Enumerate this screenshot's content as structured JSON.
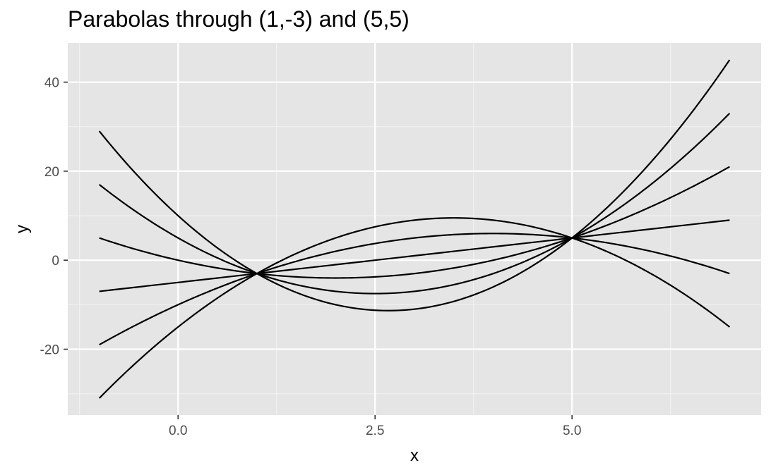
{
  "chart_data": {
    "type": "line",
    "title": "Parabolas through (1,-3) and (5,5)",
    "xlabel": "x",
    "ylabel": "y",
    "xlim": [
      -1,
      7
    ],
    "ylim": [
      -31,
      45
    ],
    "x_ticks": [
      0,
      2.5,
      5
    ],
    "x_tick_labels": [
      "0.0",
      "2.5",
      "5.0"
    ],
    "y_ticks": [
      -20,
      0,
      20,
      40
    ],
    "y_tick_labels": [
      "-20",
      "0",
      "20",
      "40"
    ],
    "grid": true,
    "legend": "none",
    "x": [
      -1,
      0,
      1,
      2,
      3,
      4,
      5,
      6,
      7
    ],
    "series": [
      {
        "values": [
          29,
          10,
          -3,
          -10,
          -11,
          -6,
          5,
          22,
          45
        ]
      },
      {
        "values": [
          17,
          5,
          -3,
          -7,
          -7,
          -3,
          5,
          17,
          33
        ]
      },
      {
        "values": [
          5,
          0,
          -3,
          -4,
          -3,
          0,
          5,
          12,
          21
        ]
      },
      {
        "values": [
          -7,
          -5,
          -3,
          -1,
          1,
          3,
          5,
          7,
          9
        ]
      },
      {
        "values": [
          -19,
          -10,
          -3,
          2,
          5,
          6,
          5,
          2,
          -3
        ]
      },
      {
        "values": [
          -31,
          -15,
          -3,
          5,
          9,
          9,
          5,
          -3,
          -15
        ]
      }
    ]
  },
  "colors": {
    "panel": "#e5e5e5",
    "grid_major": "#ffffff",
    "grid_minor": "#f2f2f2",
    "line": "#000000"
  }
}
